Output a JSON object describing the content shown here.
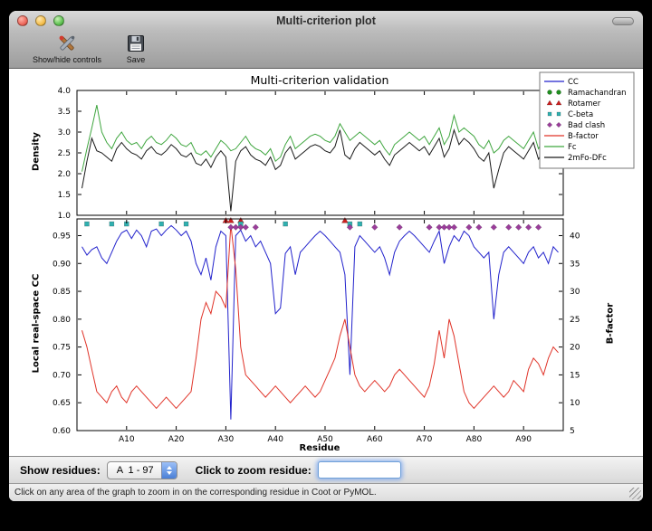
{
  "window": {
    "title": "Multi-criterion plot",
    "toolbar": {
      "show_hide_label": "Show/hide controls",
      "save_label": "Save"
    },
    "controls": {
      "show_residues_label": "Show residues:",
      "residue_range_value": "A  1 - 97",
      "zoom_label": "Click to zoom residue:",
      "zoom_input_value": ""
    },
    "status_text": "Click on any area of the graph to zoom in on the corresponding residue in Coot or PyMOL."
  },
  "legend": {
    "items": [
      {
        "label": "CC",
        "glyph": "line",
        "color": "#2222cc"
      },
      {
        "label": "Ramachandran",
        "glyph": "circle",
        "color": "#1f8f1f"
      },
      {
        "label": "Rotamer",
        "glyph": "triangle",
        "color": "#cc2020"
      },
      {
        "label": "C-beta",
        "glyph": "square",
        "color": "#30b0b0"
      },
      {
        "label": "Bad clash",
        "glyph": "diamond",
        "color": "#9b3d9b"
      },
      {
        "label": "B-factor",
        "glyph": "line",
        "color": "#e03328"
      },
      {
        "label": "Fc",
        "glyph": "line",
        "color": "#3fa63f"
      },
      {
        "label": "2mFo-DFc",
        "glyph": "line",
        "color": "#1a1a1a"
      }
    ]
  },
  "chart_data": [
    {
      "type": "line",
      "title": "Multi-criterion validation",
      "ylabel": "Density",
      "ylim": [
        1.0,
        4.0
      ],
      "yticks": [
        1.0,
        1.5,
        2.0,
        2.5,
        3.0,
        3.5,
        4.0
      ],
      "xlim": [
        0,
        98
      ],
      "x_range": [
        1,
        97
      ],
      "n_residues": 97,
      "series": [
        {
          "name": "Fc",
          "color": "#3fa63f",
          "values": [
            2.05,
            2.6,
            3.1,
            3.65,
            3.0,
            2.75,
            2.6,
            2.85,
            3.0,
            2.8,
            2.7,
            2.75,
            2.6,
            2.8,
            2.9,
            2.75,
            2.7,
            2.8,
            2.95,
            2.85,
            2.7,
            2.65,
            2.75,
            2.5,
            2.45,
            2.55,
            2.4,
            2.6,
            2.8,
            2.7,
            2.55,
            2.6,
            2.75,
            2.9,
            2.7,
            2.6,
            2.55,
            2.45,
            2.6,
            2.3,
            2.4,
            2.7,
            2.9,
            2.6,
            2.7,
            2.8,
            2.9,
            2.95,
            2.9,
            2.8,
            2.75,
            2.9,
            3.2,
            3.0,
            2.8,
            2.9,
            3.0,
            2.9,
            2.8,
            2.7,
            2.8,
            2.6,
            2.45,
            2.7,
            2.8,
            2.9,
            3.0,
            2.9,
            2.8,
            2.9,
            2.7,
            2.9,
            3.1,
            2.7,
            2.9,
            3.4,
            3.0,
            3.1,
            3.0,
            2.9,
            2.7,
            2.6,
            2.8,
            2.5,
            2.6,
            2.8,
            2.9,
            2.8,
            2.7,
            2.6,
            2.8,
            3.0,
            2.6,
            2.8,
            3.5,
            3.3,
            2.9
          ]
        },
        {
          "name": "2mFo-DFc",
          "color": "#1a1a1a",
          "values": [
            1.65,
            2.3,
            2.85,
            2.55,
            2.5,
            2.4,
            2.3,
            2.6,
            2.75,
            2.6,
            2.5,
            2.45,
            2.35,
            2.55,
            2.65,
            2.5,
            2.45,
            2.55,
            2.7,
            2.6,
            2.45,
            2.4,
            2.5,
            2.25,
            2.2,
            2.35,
            2.15,
            2.4,
            2.55,
            2.4,
            1.1,
            2.3,
            2.55,
            2.65,
            2.45,
            2.35,
            2.3,
            2.2,
            2.4,
            2.1,
            2.2,
            2.5,
            2.65,
            2.35,
            2.45,
            2.55,
            2.65,
            2.7,
            2.65,
            2.55,
            2.5,
            2.65,
            3.05,
            2.45,
            2.35,
            2.6,
            2.75,
            2.65,
            2.55,
            2.45,
            2.55,
            2.35,
            2.2,
            2.45,
            2.55,
            2.65,
            2.75,
            2.65,
            2.55,
            2.65,
            2.45,
            2.65,
            2.85,
            2.4,
            2.6,
            3.05,
            2.7,
            2.85,
            2.75,
            2.6,
            2.4,
            2.3,
            2.5,
            1.65,
            2.1,
            2.5,
            2.65,
            2.55,
            2.45,
            2.35,
            2.55,
            2.75,
            2.35,
            2.55,
            2.5,
            3.15,
            2.55
          ]
        }
      ]
    },
    {
      "type": "line",
      "xlabel": "Residue",
      "ylabel_left": "Local real-space CC",
      "ylabel_right": "B-factor",
      "ylim_left": [
        0.6,
        0.98
      ],
      "yticks_left": [
        0.6,
        0.65,
        0.7,
        0.75,
        0.8,
        0.85,
        0.9,
        0.95
      ],
      "ylim_right": [
        5,
        43
      ],
      "yticks_right": [
        5,
        10,
        15,
        20,
        25,
        30,
        35,
        40
      ],
      "xlim": [
        0,
        98
      ],
      "xticks": [
        10,
        20,
        30,
        40,
        50,
        60,
        70,
        80,
        90
      ],
      "xtick_labels": [
        "A10",
        "A20",
        "A30",
        "A40",
        "A50",
        "A60",
        "A70",
        "A80",
        "A90"
      ],
      "series": [
        {
          "name": "CC",
          "axis": "left",
          "color": "#2222cc",
          "values": [
            0.93,
            0.915,
            0.925,
            0.93,
            0.91,
            0.9,
            0.92,
            0.94,
            0.955,
            0.96,
            0.945,
            0.96,
            0.95,
            0.93,
            0.958,
            0.962,
            0.95,
            0.96,
            0.968,
            0.96,
            0.95,
            0.958,
            0.94,
            0.9,
            0.88,
            0.91,
            0.87,
            0.93,
            0.958,
            0.95,
            0.62,
            0.95,
            0.96,
            0.94,
            0.95,
            0.93,
            0.94,
            0.92,
            0.9,
            0.81,
            0.82,
            0.918,
            0.93,
            0.88,
            0.92,
            0.93,
            0.94,
            0.95,
            0.958,
            0.95,
            0.94,
            0.93,
            0.92,
            0.88,
            0.7,
            0.93,
            0.95,
            0.94,
            0.93,
            0.92,
            0.93,
            0.91,
            0.88,
            0.92,
            0.94,
            0.95,
            0.958,
            0.95,
            0.94,
            0.93,
            0.92,
            0.94,
            0.958,
            0.9,
            0.93,
            0.95,
            0.94,
            0.958,
            0.95,
            0.93,
            0.92,
            0.91,
            0.92,
            0.8,
            0.88,
            0.92,
            0.93,
            0.92,
            0.91,
            0.9,
            0.92,
            0.93,
            0.91,
            0.92,
            0.9,
            0.93,
            0.92
          ]
        },
        {
          "name": "B-factor",
          "axis": "right",
          "color": "#e03328",
          "values": [
            23,
            20,
            16,
            12,
            11,
            10,
            12,
            13,
            11,
            10,
            12,
            13,
            12,
            11,
            10,
            9,
            10,
            11,
            10,
            9,
            10,
            11,
            12,
            18,
            25,
            28,
            26,
            30,
            29,
            27,
            42,
            34,
            20,
            15,
            14,
            13,
            12,
            11,
            12,
            13,
            12,
            11,
            10,
            11,
            12,
            13,
            12,
            11,
            12,
            14,
            16,
            18,
            22,
            25,
            20,
            15,
            13,
            12,
            13,
            14,
            13,
            12,
            13,
            15,
            16,
            15,
            14,
            13,
            12,
            11,
            13,
            17,
            23,
            18,
            25,
            22,
            17,
            12,
            10,
            9,
            10,
            11,
            12,
            13,
            12,
            11,
            12,
            14,
            13,
            12,
            16,
            18,
            17,
            15,
            18,
            20,
            19
          ]
        }
      ],
      "markers": [
        {
          "name": "Ramachandran",
          "shape": "circle",
          "color": "#1f8f1f",
          "y": 0.977,
          "residues": []
        },
        {
          "name": "Rotamer",
          "shape": "triangle",
          "color": "#cc2020",
          "y": 0.977,
          "residues": [
            30,
            31,
            33,
            54
          ]
        },
        {
          "name": "C-beta",
          "shape": "square",
          "color": "#30b0b0",
          "y": 0.971,
          "residues": [
            2,
            7,
            10,
            17,
            22,
            33,
            42,
            55,
            57
          ]
        },
        {
          "name": "Bad clash",
          "shape": "diamond",
          "color": "#9b3d9b",
          "y": 0.965,
          "residues": [
            31,
            32,
            33,
            34,
            36,
            55,
            60,
            65,
            71,
            73,
            74,
            75,
            76,
            79,
            81,
            84,
            87,
            89,
            91,
            93
          ]
        }
      ]
    }
  ]
}
